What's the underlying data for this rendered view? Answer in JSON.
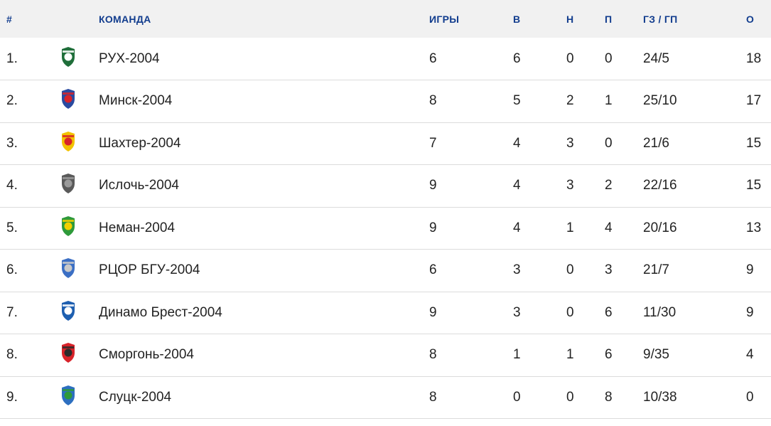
{
  "headers": {
    "rank": "#",
    "team": "КОМАНДА",
    "games": "ИГРЫ",
    "wins": "В",
    "draws": "Н",
    "losses": "П",
    "goals": "ГЗ / ГП",
    "points": "О"
  },
  "rows": [
    {
      "rank": "1.",
      "team": "РУХ-2004",
      "games": "6",
      "wins": "6",
      "draws": "0",
      "losses": "0",
      "goals": "24/5",
      "points": "18",
      "logo_icon": "rukh-crest-icon",
      "logo_colors": [
        "#1f6e3a",
        "#ffffff"
      ]
    },
    {
      "rank": "2.",
      "team": "Минск-2004",
      "games": "8",
      "wins": "5",
      "draws": "2",
      "losses": "1",
      "goals": "25/10",
      "points": "17",
      "logo_icon": "minsk-crest-icon",
      "logo_colors": [
        "#2a4aa0",
        "#d8232a"
      ]
    },
    {
      "rank": "3.",
      "team": "Шахтер-2004",
      "games": "7",
      "wins": "4",
      "draws": "3",
      "losses": "0",
      "goals": "21/6",
      "points": "15",
      "logo_icon": "shakhter-crest-icon",
      "logo_colors": [
        "#f2c200",
        "#d8232a"
      ]
    },
    {
      "rank": "4.",
      "team": "Ислочь-2004",
      "games": "9",
      "wins": "4",
      "draws": "3",
      "losses": "2",
      "goals": "22/16",
      "points": "15",
      "logo_icon": "isloch-crest-icon",
      "logo_colors": [
        "#5a5a5a",
        "#9a9a9a"
      ]
    },
    {
      "rank": "5.",
      "team": "Неман-2004",
      "games": "9",
      "wins": "4",
      "draws": "1",
      "losses": "4",
      "goals": "20/16",
      "points": "13",
      "logo_icon": "neman-crest-icon",
      "logo_colors": [
        "#2e9a3a",
        "#f2d000"
      ]
    },
    {
      "rank": "6.",
      "team": "РЦОР БГУ-2004",
      "games": "6",
      "wins": "3",
      "draws": "0",
      "losses": "3",
      "goals": "21/7",
      "points": "9",
      "logo_icon": "bgu-crest-icon",
      "logo_colors": [
        "#3b6fc4",
        "#c9c9c9"
      ]
    },
    {
      "rank": "7.",
      "team": "Динамо Брест-2004",
      "games": "9",
      "wins": "3",
      "draws": "0",
      "losses": "6",
      "goals": "11/30",
      "points": "9",
      "logo_icon": "dinamo-brest-crest-icon",
      "logo_colors": [
        "#1e5fb0",
        "#ffffff"
      ]
    },
    {
      "rank": "8.",
      "team": "Сморгонь-2004",
      "games": "8",
      "wins": "1",
      "draws": "1",
      "losses": "6",
      "goals": "9/35",
      "points": "4",
      "logo_icon": "smorgon-crest-icon",
      "logo_colors": [
        "#d8232a",
        "#2b2b2b"
      ]
    },
    {
      "rank": "9.",
      "team": "Слуцк-2004",
      "games": "8",
      "wins": "0",
      "draws": "0",
      "losses": "8",
      "goals": "10/38",
      "points": "0",
      "logo_icon": "slutsk-crest-icon",
      "logo_colors": [
        "#2d6fc0",
        "#2e9a3a"
      ]
    }
  ],
  "colors": {
    "header_bg": "#f1f1f1",
    "header_text": "#123d8e",
    "row_text": "#232323",
    "row_divider": "#dcdcdc"
  }
}
